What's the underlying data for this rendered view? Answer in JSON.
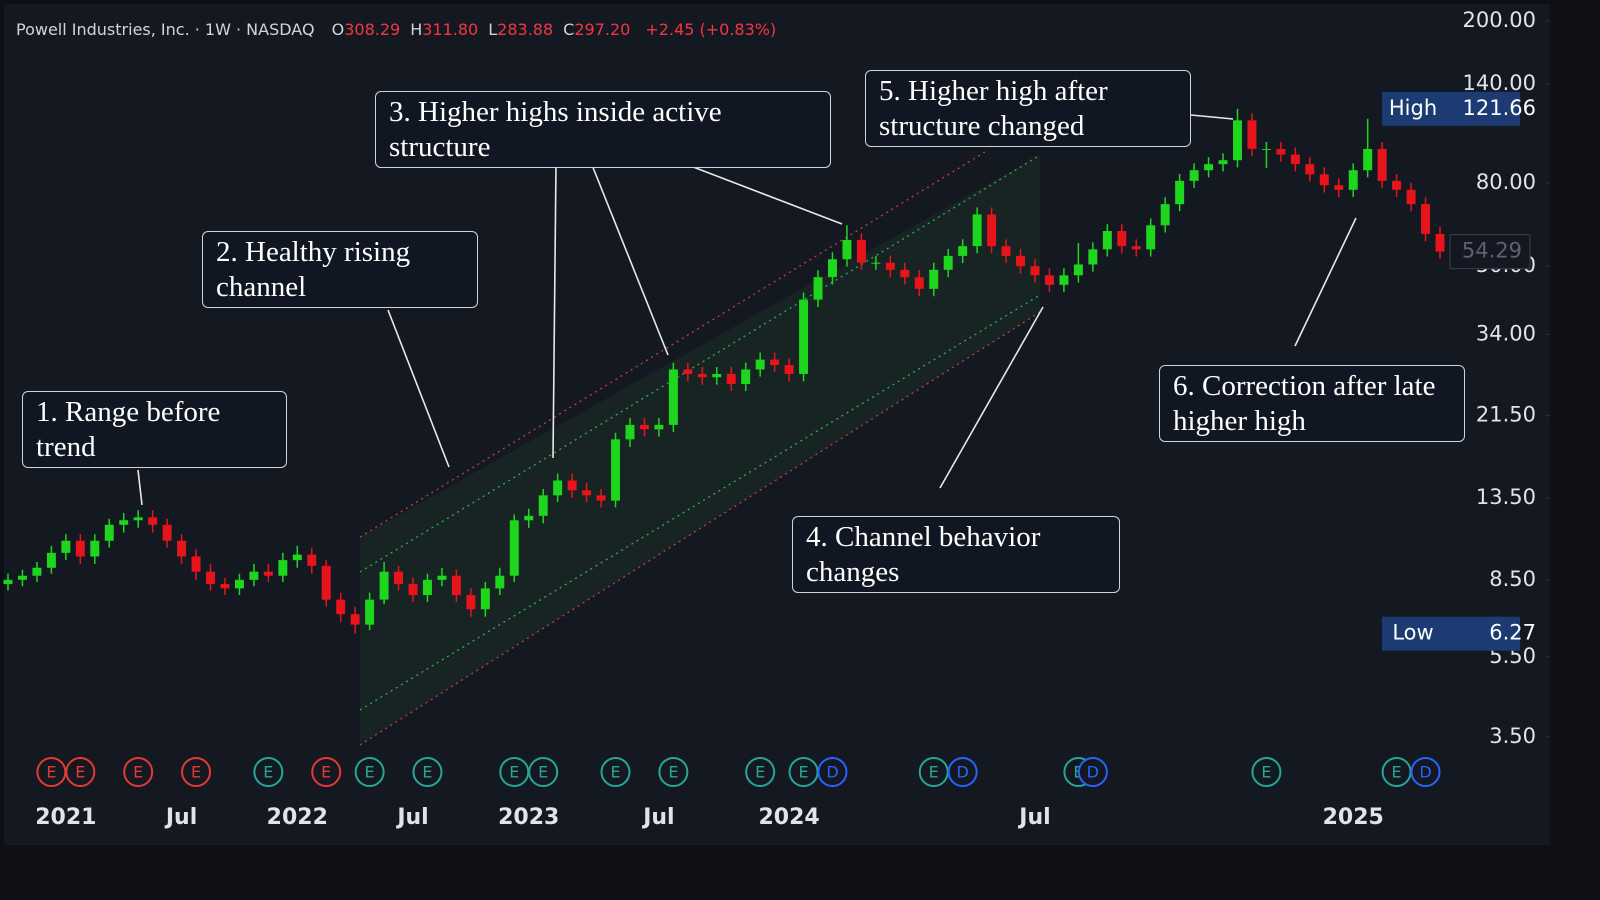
{
  "chart_data": {
    "type": "candlestick",
    "title": "Powell Industries, Inc. · 1W · NASDAQ",
    "quote": [
      {
        "name": "O",
        "text": "308.29"
      },
      {
        "name": "H",
        "text": "311.80"
      },
      {
        "name": "L",
        "text": "283.88"
      },
      {
        "name": "C",
        "text": "297.20"
      }
    ],
    "change": "+2.45 (+0.83%)",
    "log_scale": true,
    "grid": false,
    "up_color": "#1fd61f",
    "down_color": "#e8141c",
    "ylim": [
      1.9,
      225
    ],
    "yticks": [
      {
        "value": 3.5,
        "label": "3.50"
      },
      {
        "value": 5.5,
        "label": "5.50"
      },
      {
        "value": 8.5,
        "label": "8.50"
      },
      {
        "value": 13.5,
        "label": "13.50"
      },
      {
        "value": 21.5,
        "label": "21.50"
      },
      {
        "value": 34,
        "label": "34.00"
      },
      {
        "value": 50,
        "label": "50.00"
      },
      {
        "value": 80,
        "label": "80.00"
      },
      {
        "value": 140,
        "label": "140.00"
      },
      {
        "value": 200,
        "label": "200.00"
      }
    ],
    "categories": [
      null,
      null,
      null,
      null,
      "2021",
      null,
      null,
      null,
      null,
      null,
      null,
      null,
      "Jul",
      null,
      null,
      null,
      null,
      null,
      null,
      null,
      "2022",
      null,
      null,
      null,
      null,
      null,
      null,
      null,
      "Jul",
      null,
      null,
      null,
      null,
      null,
      null,
      null,
      "2023",
      null,
      null,
      null,
      null,
      null,
      null,
      null,
      null,
      "Jul",
      null,
      null,
      null,
      null,
      null,
      null,
      null,
      null,
      "2024",
      null,
      null,
      null,
      null,
      null,
      null,
      null,
      null,
      null,
      null,
      null,
      null,
      null,
      null,
      null,
      null,
      "Jul",
      null,
      null,
      null,
      null,
      null,
      null,
      null,
      null,
      null,
      null,
      null,
      null,
      null,
      null,
      null,
      null,
      null,
      null,
      null,
      null,
      null,
      "2025",
      null,
      null,
      null,
      null,
      null,
      null
    ],
    "open": [
      8.3,
      8.5,
      8.7,
      9.1,
      9.9,
      10.6,
      9.7,
      10.6,
      11.6,
      11.9,
      12.1,
      11.6,
      10.6,
      9.7,
      8.9,
      8.3,
      8.1,
      8.5,
      8.9,
      8.7,
      9.5,
      9.8,
      9.2,
      7.6,
      7.0,
      6.6,
      7.6,
      8.9,
      8.3,
      7.8,
      8.5,
      8.7,
      7.8,
      7.2,
      8.1,
      8.7,
      11.9,
      12.2,
      13.7,
      14.9,
      14.1,
      13.7,
      13.3,
      18.8,
      20.4,
      19.9,
      20.4,
      27.9,
      27.2,
      26.7,
      27.2,
      25.7,
      27.9,
      29.5,
      28.6,
      27.2,
      41.4,
      47,
      52,
      58,
      51,
      51,
      49,
      47,
      44,
      49,
      53,
      56,
      67,
      56,
      53,
      50,
      47.5,
      45,
      47.5,
      50.5,
      55,
      61,
      56,
      55,
      63,
      71,
      81,
      86,
      89,
      91,
      114,
      97,
      97,
      94,
      89,
      84,
      79,
      77,
      86,
      97,
      81,
      77,
      71,
      60
    ],
    "high": [
      8.8,
      9.0,
      9.4,
      10.3,
      11.0,
      11.0,
      11.0,
      12.0,
      12.4,
      12.6,
      12.6,
      12.0,
      11.0,
      10.1,
      9.3,
      8.6,
      8.8,
      9.3,
      9.3,
      9.9,
      10.3,
      10.2,
      9.5,
      7.9,
      7.3,
      7.9,
      9.4,
      9.2,
      8.6,
      8.8,
      9.1,
      9.0,
      8.1,
      8.4,
      9.1,
      12.3,
      12.7,
      14.2,
      15.5,
      15.5,
      14.7,
      14.2,
      19.5,
      21.2,
      21.2,
      21.2,
      29.0,
      29.0,
      28.3,
      28.3,
      28.3,
      29.0,
      30.7,
      30.7,
      29.7,
      43.1,
      48.9,
      54.1,
      63.0,
      60.3,
      53.0,
      53.0,
      51.0,
      48.9,
      51.0,
      55.1,
      58.2,
      69.7,
      69.7,
      58.2,
      55.1,
      52.0,
      49.4,
      49.4,
      57.0,
      57.2,
      63.4,
      63.4,
      58.2,
      65.5,
      73.8,
      84.2,
      89.4,
      92.6,
      94.6,
      121.66,
      118.6,
      100.9,
      100.9,
      97.8,
      92.6,
      87.4,
      82.2,
      89.4,
      115,
      100.9,
      84.2,
      80.1,
      73.8,
      62.4
    ],
    "low": [
      8.0,
      8.2,
      8.4,
      8.8,
      9.5,
      9.3,
      9.3,
      10.2,
      11.1,
      11.4,
      11.1,
      10.2,
      9.3,
      8.5,
      8.0,
      7.8,
      7.8,
      8.2,
      8.4,
      8.4,
      9.1,
      8.8,
      7.3,
      6.7,
      6.27,
      6.4,
      7.4,
      8.0,
      7.5,
      7.5,
      8.2,
      7.5,
      6.9,
      6.9,
      7.8,
      8.4,
      11.4,
      11.7,
      13.2,
      13.5,
      13.2,
      12.8,
      12.8,
      18.0,
      19.1,
      19.1,
      19.6,
      26.1,
      25.6,
      25.6,
      24.7,
      24.7,
      26.8,
      27.5,
      26.1,
      26.1,
      39.7,
      45.1,
      49.9,
      49.0,
      49.0,
      47.0,
      45.1,
      42.2,
      42.2,
      47.0,
      50.9,
      53.8,
      53.8,
      50.9,
      48.0,
      45.6,
      43.2,
      43.2,
      45.6,
      48.5,
      52.8,
      53.8,
      52.8,
      52.8,
      60.5,
      68.2,
      77.8,
      82.6,
      85.4,
      87.4,
      93.1,
      87,
      90.2,
      85.4,
      80.6,
      75.8,
      73.9,
      73.9,
      82.6,
      77.8,
      73.9,
      68.2,
      57.6,
      52.1
    ],
    "close": [
      8.5,
      8.7,
      9.1,
      9.9,
      10.6,
      9.7,
      10.6,
      11.6,
      11.9,
      12.1,
      11.6,
      10.6,
      9.7,
      8.9,
      8.3,
      8.1,
      8.5,
      8.9,
      8.7,
      9.5,
      9.8,
      9.2,
      7.6,
      7.0,
      6.6,
      7.6,
      8.9,
      8.3,
      7.8,
      8.5,
      8.7,
      7.8,
      7.2,
      8.1,
      8.7,
      11.9,
      12.2,
      13.7,
      14.9,
      14.1,
      13.7,
      13.3,
      18.8,
      20.4,
      19.9,
      20.4,
      27.9,
      27.2,
      26.7,
      27.2,
      25.7,
      27.9,
      29.5,
      28.6,
      27.2,
      41.4,
      47,
      52,
      58,
      51,
      51,
      49,
      47,
      44,
      49,
      53,
      56,
      67,
      56,
      53,
      50,
      47.5,
      45,
      47.5,
      50.5,
      55,
      61,
      56,
      55,
      63,
      71,
      81,
      86,
      89,
      91,
      114,
      97,
      97,
      94,
      89,
      84,
      79,
      77,
      86,
      97,
      81,
      77,
      71,
      60,
      54.29
    ],
    "high_marker": "High",
    "low_marker": "Low",
    "annotations": [
      "1. Range before trend",
      "2. Healthy rising channel",
      "3. Higher highs inside active structure",
      "4. Channel behavior changes",
      "5. Higher high after structure changed",
      "6. Correction after late higher high"
    ],
    "events": [
      {
        "index": 3,
        "label": "E",
        "color": "#e53935"
      },
      {
        "index": 5,
        "label": "E",
        "color": "#e53935"
      },
      {
        "index": 9,
        "label": "E",
        "color": "#e53935"
      },
      {
        "index": 13,
        "label": "E",
        "color": "#e53935"
      },
      {
        "index": 18,
        "label": "E",
        "color": "#26a69a"
      },
      {
        "index": 22,
        "label": "E",
        "color": "#e53935"
      },
      {
        "index": 25,
        "label": "E",
        "color": "#26a69a"
      },
      {
        "index": 29,
        "label": "E",
        "color": "#26a69a"
      },
      {
        "index": 35,
        "label": "E",
        "color": "#26a69a"
      },
      {
        "index": 37,
        "label": "E",
        "color": "#26a69a"
      },
      {
        "index": 42,
        "label": "E",
        "color": "#26a69a"
      },
      {
        "index": 46,
        "label": "E",
        "color": "#26a69a"
      },
      {
        "index": 52,
        "label": "E",
        "color": "#26a69a"
      },
      {
        "index": 55,
        "label": "E",
        "color": "#26a69a"
      },
      {
        "index": 57,
        "label": "D",
        "color": "#2962ff"
      },
      {
        "index": 64,
        "label": "E",
        "color": "#26a69a"
      },
      {
        "index": 66,
        "label": "D",
        "color": "#2962ff"
      },
      {
        "index": 74,
        "label": "E",
        "color": "#26a69a"
      },
      {
        "index": 75,
        "label": "D",
        "color": "#2962ff"
      },
      {
        "index": 87,
        "label": "E",
        "color": "#26a69a"
      },
      {
        "index": 96,
        "label": "E",
        "color": "#26a69a"
      },
      {
        "index": 98,
        "label": "D",
        "color": "#2962ff"
      }
    ]
  }
}
